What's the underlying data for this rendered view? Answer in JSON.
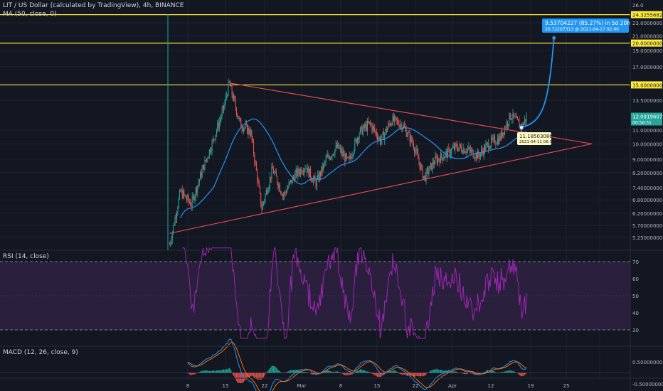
{
  "header": {
    "title": "LIT / US Dollar (calculated by TradingView), 4h, BINANCE",
    "ma_label": "MA (50, close, 0)"
  },
  "colors": {
    "background": "#131722",
    "grid": "#1f2330",
    "up": "#26a69a",
    "down": "#ef5350",
    "ma": "#2196f3",
    "trendline": "#e0494f",
    "hline": "#ffeb3b",
    "rsi": "#9c27b0",
    "rsi_band": "#2a1f3d",
    "macd": "#2196f3",
    "signal": "#ff6d00"
  },
  "price_axis": {
    "ticks": [
      "26.0",
      "23.0000000",
      "21.0000000",
      "19.0000000",
      "17.0000000",
      "13.5000000",
      "11.0000000",
      "10.0000000",
      "9.00000000",
      "8.20000000",
      "7.40000000",
      "6.80000000",
      "6.20000000",
      "5.70000000",
      "5.25000000"
    ],
    "tags": [
      {
        "text": "24.32556822",
        "kind": "hline"
      },
      {
        "text": "20.00000000",
        "kind": "hline"
      },
      {
        "text": "15.00000000",
        "kind": "hline"
      },
      {
        "text": "12.09196072",
        "kind": "price",
        "sub": "00:56:51"
      }
    ]
  },
  "time_axis": [
    "8",
    "15",
    "22",
    "Mar",
    "8",
    "15",
    "22",
    "Apr",
    "12",
    "19",
    "25"
  ],
  "annotations": {
    "projection_line1": "9.53704227 (85.27%) in 5d 20h",
    "projection_line2": "20.72207313 @ 2021-04-17 02:00",
    "low_line1": "11.18503086",
    "low_line2": "2021-04-11 06:00"
  },
  "rsi": {
    "label": "RSI (14, close)",
    "ticks": [
      "70",
      "60",
      "50",
      "40",
      "30"
    ]
  },
  "macd": {
    "label": "MACD (12, 26, close, 9)",
    "ticks": [
      "0.50000000",
      "-0.50000000"
    ]
  },
  "chart_data": {
    "type": "candlestick",
    "symbol": "LIT / US Dollar",
    "interval": "4h",
    "exchange": "BINANCE",
    "horizontal_levels": [
      24.32556822,
      20.0,
      15.0
    ],
    "last_price": 12.09196072,
    "close_path": [
      {
        "date": "2021-02-05",
        "close": 5.0
      },
      {
        "date": "2021-02-07",
        "close": 7.2
      },
      {
        "date": "2021-02-09",
        "close": 6.6
      },
      {
        "date": "2021-02-11",
        "close": 8.3
      },
      {
        "date": "2021-02-13",
        "close": 10.2
      },
      {
        "date": "2021-02-15",
        "close": 12.8
      },
      {
        "date": "2021-02-16",
        "close": 15.2
      },
      {
        "date": "2021-02-18",
        "close": 11.5
      },
      {
        "date": "2021-02-20",
        "close": 10.8
      },
      {
        "date": "2021-02-22",
        "close": 6.4
      },
      {
        "date": "2021-02-24",
        "close": 8.4
      },
      {
        "date": "2021-02-26",
        "close": 7.0
      },
      {
        "date": "2021-02-28",
        "close": 8.0
      },
      {
        "date": "2021-03-02",
        "close": 8.6
      },
      {
        "date": "2021-03-04",
        "close": 7.6
      },
      {
        "date": "2021-03-06",
        "close": 9.0
      },
      {
        "date": "2021-03-08",
        "close": 9.8
      },
      {
        "date": "2021-03-10",
        "close": 8.8
      },
      {
        "date": "2021-03-12",
        "close": 10.8
      },
      {
        "date": "2021-03-14",
        "close": 11.5
      },
      {
        "date": "2021-03-16",
        "close": 10.2
      },
      {
        "date": "2021-03-18",
        "close": 11.8
      },
      {
        "date": "2021-03-20",
        "close": 11.4
      },
      {
        "date": "2021-03-22",
        "close": 10.0
      },
      {
        "date": "2021-03-24",
        "close": 7.9
      },
      {
        "date": "2021-03-26",
        "close": 8.9
      },
      {
        "date": "2021-03-28",
        "close": 9.3
      },
      {
        "date": "2021-03-30",
        "close": 9.8
      },
      {
        "date": "2021-04-01",
        "close": 9.6
      },
      {
        "date": "2021-04-03",
        "close": 9.2
      },
      {
        "date": "2021-04-05",
        "close": 10.0
      },
      {
        "date": "2021-04-07",
        "close": 10.4
      },
      {
        "date": "2021-04-09",
        "close": 12.2
      },
      {
        "date": "2021-04-11",
        "close": 11.2
      },
      {
        "date": "2021-04-12",
        "close": 12.1
      }
    ],
    "triangle": {
      "upper": [
        {
          "date": "2021-02-16",
          "price": 15.2
        },
        {
          "date": "2021-04-24",
          "price": 10.0
        }
      ],
      "lower": [
        {
          "date": "2021-02-05",
          "price": 5.4
        },
        {
          "date": "2021-04-24",
          "price": 10.0
        }
      ]
    },
    "projection": {
      "from": {
        "date": "2021-04-11",
        "price": 11.18503086
      },
      "to": {
        "date": "2021-04-17",
        "price": 20.72207313
      },
      "change": 9.53704227,
      "percent": 85.27
    },
    "rsi": {
      "period": 14,
      "overbought": 70,
      "oversold": 30
    },
    "macd": {
      "fast": 12,
      "slow": 26,
      "signal": 9
    }
  }
}
